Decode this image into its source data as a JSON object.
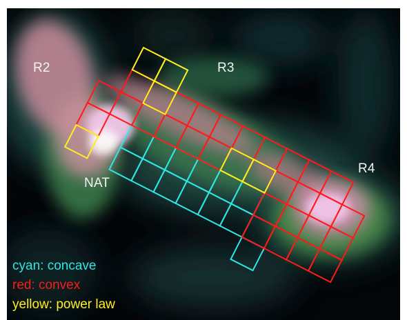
{
  "regions": {
    "r2": "R2",
    "r3": "R3",
    "r4": "R4",
    "nat": "NAT"
  },
  "legend": [
    {
      "text": "cyan: concave",
      "color": "#2ee6e6"
    },
    {
      "text": "red: convex",
      "color": "#ff1a1a"
    },
    {
      "text": "yellow: power law",
      "color": "#ffee22"
    }
  ],
  "grid_colors": {
    "cyan": "#2ee6e6",
    "red": "#ff1a1a",
    "yellow": "#ffee22"
  }
}
